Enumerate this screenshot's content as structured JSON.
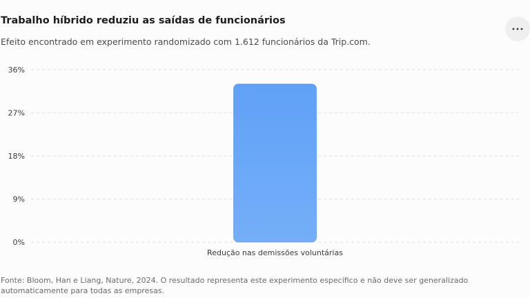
{
  "header": {
    "title": "Trabalho híbrido reduziu as saídas de funcionários",
    "subtitle": "Efeito encontrado em experimento randomizado com 1.612 funcionários da Trip.com.",
    "menu_icon": "more-horizontal-icon"
  },
  "colors": {
    "bar_top": "#60a1f7",
    "bar_bottom": "#74aef8",
    "bar_stroke": "#4f8fe3",
    "grid": "#dedede"
  },
  "chart_data": {
    "type": "bar",
    "categories": [
      "Redução nas demissões voluntárias"
    ],
    "values": [
      33
    ],
    "title": "Trabalho híbrido reduziu as saídas de funcionários",
    "xlabel": "",
    "ylabel": "",
    "ylim": [
      0,
      36
    ],
    "yticks": [
      0,
      9,
      18,
      27,
      36
    ],
    "ytick_labels": [
      "0%",
      "9%",
      "18%",
      "27%",
      "36%"
    ],
    "grid": true,
    "legend": "none"
  },
  "footer": {
    "source": "Fonte: Bloom, Han e Liang, Nature, 2024. O resultado representa este experimento específico e não deve ser generalizado automaticamente para todas as empresas."
  }
}
